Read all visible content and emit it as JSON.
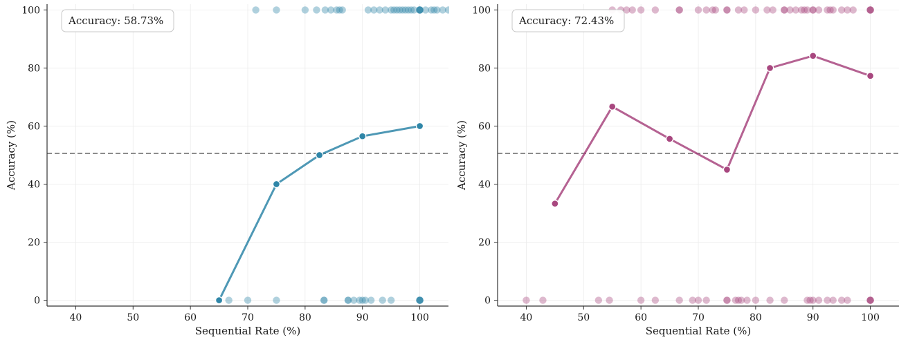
{
  "chart_data": [
    {
      "type": "scatter",
      "xlabel": "Sequential Rate (%)",
      "ylabel": "Accuracy (%)",
      "xlim": [
        35,
        105
      ],
      "ylim": [
        -2,
        102
      ],
      "xticks": [
        40,
        50,
        60,
        70,
        80,
        90,
        100
      ],
      "yticks": [
        0,
        20,
        40,
        60,
        80,
        100
      ],
      "grid": true,
      "color": "#2f86a8",
      "annotation": "Accuracy: 58.73%",
      "annotation_position": "top-left",
      "reference_line_y": 50.6,
      "series": [
        {
          "kind": "line",
          "x": [
            65,
            75,
            82.5,
            90,
            100
          ],
          "y": [
            0,
            40,
            50,
            56.5,
            60
          ]
        },
        {
          "kind": "points",
          "y": 100,
          "x": [
            71.4,
            75,
            80,
            82,
            83.5,
            84.5,
            85.5,
            86,
            86.5,
            91,
            92,
            93,
            94,
            95,
            95.5,
            96,
            96.5,
            97,
            97.5,
            98,
            98.5,
            99,
            100,
            100,
            100,
            100,
            100,
            101,
            102,
            102.5,
            103,
            104,
            105
          ]
        },
        {
          "kind": "points",
          "y": 0,
          "x": [
            65,
            66.7,
            70,
            75,
            83.3,
            83.3,
            87.5,
            87.5,
            88.5,
            89.5,
            90,
            90.5,
            91.5,
            93.5,
            95,
            100,
            100,
            100,
            100,
            100
          ]
        }
      ]
    },
    {
      "type": "scatter",
      "xlabel": "Sequential Rate (%)",
      "ylabel": "Accuracy (%)",
      "xlim": [
        35,
        105
      ],
      "ylim": [
        -2,
        102
      ],
      "xticks": [
        40,
        50,
        60,
        70,
        80,
        90,
        100
      ],
      "yticks": [
        0,
        20,
        40,
        60,
        80,
        100
      ],
      "grid": true,
      "color": "#a8477f",
      "annotation": "Accuracy: 72.43%",
      "annotation_position": "top-left",
      "reference_line_y": 50.6,
      "series": [
        {
          "kind": "line",
          "x": [
            45,
            55,
            65,
            75,
            82.5,
            90,
            100
          ],
          "y": [
            33.3,
            66.7,
            55.6,
            45,
            80,
            84.2,
            77.3
          ]
        },
        {
          "kind": "points",
          "y": 100,
          "x": [
            55,
            56.5,
            57.5,
            58.5,
            60,
            62.5,
            66.7,
            66.7,
            70,
            71.4,
            72.5,
            73,
            75,
            75,
            77,
            78,
            80,
            82,
            83,
            85,
            85,
            86,
            87,
            88,
            88.5,
            89,
            90,
            90,
            91,
            92.5,
            93,
            93.5,
            95,
            96,
            97,
            100,
            100,
            100,
            100
          ]
        },
        {
          "kind": "points",
          "y": 0,
          "x": [
            40,
            42.9,
            52.6,
            54.5,
            60,
            62.5,
            66.7,
            69,
            70,
            71.4,
            75,
            75,
            76.5,
            77,
            77.5,
            78.5,
            80,
            82.5,
            85,
            89,
            89.5,
            90,
            91,
            92.5,
            93.5,
            95,
            96,
            100,
            100,
            100,
            100
          ]
        }
      ]
    }
  ]
}
